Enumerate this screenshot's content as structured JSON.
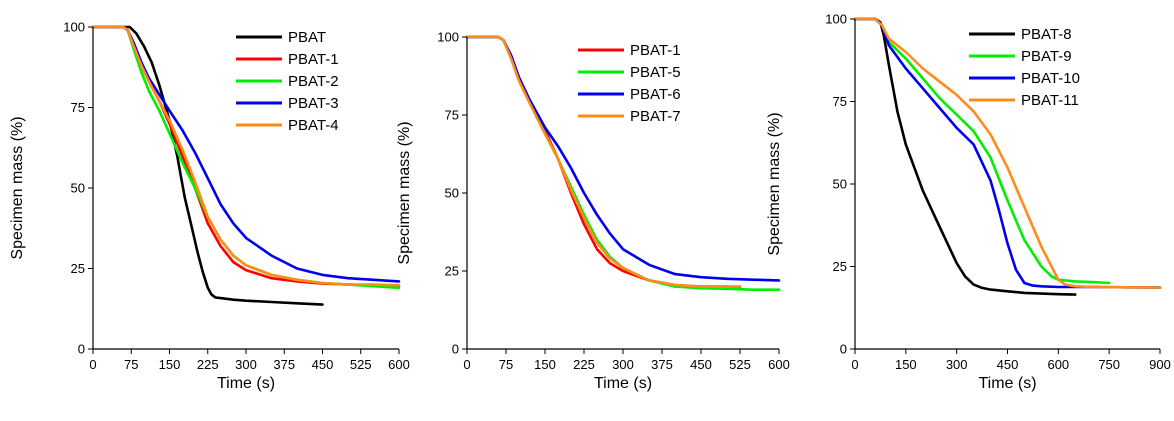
{
  "chart_data": [
    {
      "type": "line",
      "xlabel": "Time (s)",
      "ylabel": "Specimen mass (%)",
      "xlim": [
        0,
        600
      ],
      "ylim": [
        0,
        100
      ],
      "xticks": [
        0,
        75,
        150,
        225,
        300,
        375,
        450,
        525,
        600
      ],
      "yticks": [
        0,
        25,
        50,
        75,
        100
      ],
      "legend_position": "top-right",
      "series": [
        {
          "name": "PBAT",
          "color": "#000000",
          "x": [
            0,
            60,
            72,
            85,
            100,
            115,
            130,
            150,
            165,
            180,
            195,
            205,
            215,
            225,
            232,
            240,
            250,
            275,
            300,
            350,
            400,
            450
          ],
          "y": [
            100,
            100,
            100,
            98,
            94,
            89,
            82,
            71,
            60,
            47,
            37,
            30,
            24,
            19,
            17,
            16,
            15.8,
            15.3,
            15,
            14.6,
            14.2,
            13.8
          ]
        },
        {
          "name": "PBAT-1",
          "color": "#ff0000",
          "x": [
            0,
            60,
            68,
            80,
            95,
            110,
            130,
            150,
            175,
            200,
            225,
            250,
            275,
            300,
            350,
            400,
            450,
            500,
            550,
            600
          ],
          "y": [
            100,
            100,
            99,
            94,
            88,
            83,
            77,
            70,
            60,
            50,
            39,
            32,
            27,
            24.5,
            22,
            21,
            20.3,
            20,
            19.7,
            19.5
          ]
        },
        {
          "name": "PBAT-2",
          "color": "#00ee00",
          "x": [
            0,
            60,
            68,
            80,
            95,
            110,
            130,
            150,
            175,
            200,
            225,
            250,
            275,
            300,
            350,
            400,
            450,
            500,
            550,
            600
          ],
          "y": [
            100,
            100,
            99,
            93,
            86,
            80,
            74,
            67,
            58,
            50,
            41,
            34,
            29,
            26,
            23,
            21.5,
            20.5,
            20,
            19.5,
            19
          ]
        },
        {
          "name": "PBAT-3",
          "color": "#0000ee",
          "x": [
            0,
            60,
            68,
            80,
            95,
            110,
            130,
            150,
            175,
            200,
            225,
            250,
            275,
            300,
            350,
            400,
            450,
            500,
            550,
            600
          ],
          "y": [
            100,
            100,
            99,
            95,
            89,
            84,
            79,
            74,
            68,
            61,
            53,
            45,
            39,
            34.5,
            29,
            25,
            23,
            22,
            21.5,
            21
          ]
        },
        {
          "name": "PBAT-4",
          "color": "#ff8c1a",
          "x": [
            0,
            60,
            68,
            80,
            95,
            110,
            130,
            150,
            175,
            200,
            225,
            250,
            275,
            300,
            350,
            400,
            450,
            500,
            550,
            600
          ],
          "y": [
            100,
            100,
            99,
            94,
            88,
            83,
            77,
            71,
            62,
            52,
            41,
            34,
            29,
            26,
            23,
            21.5,
            20.5,
            20,
            20,
            19.8
          ]
        }
      ],
      "legend_entries": [
        "PBAT",
        "PBAT-1",
        "PBAT-2",
        "PBAT-3",
        "PBAT-4"
      ]
    },
    {
      "type": "line",
      "xlabel": "Time (s)",
      "ylabel": "Specimen mass (%)",
      "xlim": [
        0,
        600
      ],
      "ylim": [
        0,
        100
      ],
      "xticks": [
        0,
        75,
        150,
        225,
        300,
        375,
        450,
        525,
        600
      ],
      "yticks": [
        0,
        25,
        50,
        75,
        100
      ],
      "legend_position": "top-right",
      "series": [
        {
          "name": "PBAT-1",
          "color": "#ff0000",
          "x": [
            0,
            60,
            70,
            85,
            100,
            120,
            150,
            175,
            200,
            225,
            250,
            275,
            300,
            350,
            400,
            450,
            500,
            525
          ],
          "y": [
            100,
            100,
            99,
            94,
            87,
            80,
            70,
            61,
            50,
            40,
            32,
            27.5,
            25,
            22,
            20.5,
            20,
            20,
            19.8
          ]
        },
        {
          "name": "PBAT-5",
          "color": "#00ee00",
          "x": [
            0,
            60,
            70,
            85,
            100,
            120,
            150,
            175,
            200,
            225,
            250,
            275,
            300,
            350,
            400,
            450,
            500,
            550,
            600
          ],
          "y": [
            100,
            100,
            99,
            93,
            86,
            79,
            69,
            61,
            52,
            43,
            35,
            29.5,
            26,
            22,
            20,
            19.5,
            19.3,
            19,
            19
          ]
        },
        {
          "name": "PBAT-6",
          "color": "#0000ee",
          "x": [
            0,
            60,
            70,
            85,
            100,
            120,
            150,
            175,
            200,
            225,
            250,
            275,
            300,
            350,
            400,
            450,
            500,
            550,
            600
          ],
          "y": [
            100,
            100,
            99,
            94,
            87,
            80,
            71,
            65,
            58,
            50,
            43,
            37,
            32,
            27,
            24,
            23,
            22.5,
            22.2,
            22
          ]
        },
        {
          "name": "PBAT-7",
          "color": "#ff8c1a",
          "x": [
            0,
            60,
            70,
            85,
            100,
            120,
            150,
            175,
            200,
            225,
            250,
            275,
            300,
            350,
            400,
            450,
            500,
            525
          ],
          "y": [
            100,
            100,
            99,
            93,
            86,
            79,
            69,
            61,
            51,
            42,
            34,
            29,
            26,
            22,
            20.5,
            20,
            20,
            20
          ]
        }
      ],
      "legend_entries": [
        "PBAT-1",
        "PBAT-5",
        "PBAT-6",
        "PBAT-7"
      ]
    },
    {
      "type": "line",
      "xlabel": "Time (s)",
      "ylabel": "Specimen mass (%)",
      "xlim": [
        0,
        900
      ],
      "ylim": [
        0,
        100
      ],
      "xticks": [
        0,
        150,
        300,
        450,
        600,
        750,
        900
      ],
      "yticks": [
        0,
        25,
        50,
        75,
        100
      ],
      "legend_position": "top-right",
      "series": [
        {
          "name": "PBAT-8",
          "color": "#000000",
          "x": [
            0,
            60,
            75,
            85,
            100,
            125,
            150,
            200,
            250,
            300,
            325,
            350,
            375,
            400,
            450,
            500,
            550,
            600,
            650
          ],
          "y": [
            100,
            100,
            99,
            95,
            86,
            72,
            62,
            48,
            37,
            26,
            22,
            19.5,
            18.5,
            18,
            17.5,
            17,
            16.8,
            16.6,
            16.5
          ]
        },
        {
          "name": "PBAT-9",
          "color": "#00ee00",
          "x": [
            0,
            60,
            80,
            100,
            150,
            200,
            250,
            300,
            350,
            400,
            450,
            500,
            550,
            580,
            600,
            650,
            700,
            750
          ],
          "y": [
            100,
            100,
            98,
            93,
            88,
            82,
            76,
            71,
            66,
            58,
            45,
            33,
            25,
            22,
            21,
            20.5,
            20.3,
            20
          ]
        },
        {
          "name": "PBAT-10",
          "color": "#0000ee",
          "x": [
            0,
            60,
            80,
            100,
            150,
            200,
            250,
            300,
            350,
            400,
            425,
            450,
            475,
            500,
            525,
            550,
            600,
            700,
            800,
            900
          ],
          "y": [
            100,
            100,
            98,
            92,
            85,
            79,
            73,
            67,
            62,
            51,
            42,
            32,
            24,
            20,
            19.2,
            19,
            18.8,
            18.8,
            18.7,
            18.6
          ]
        },
        {
          "name": "PBAT-11",
          "color": "#ff8c1a",
          "x": [
            0,
            60,
            80,
            100,
            150,
            200,
            250,
            300,
            350,
            400,
            450,
            500,
            550,
            600,
            620,
            650,
            700,
            800,
            900
          ],
          "y": [
            100,
            100,
            98,
            94,
            90,
            85,
            81,
            77,
            72,
            65,
            55,
            43,
            31,
            21,
            19.5,
            19,
            18.8,
            18.7,
            18.6
          ]
        }
      ],
      "legend_entries": [
        "PBAT-8",
        "PBAT-9",
        "PBAT-10",
        "PBAT-11"
      ]
    }
  ]
}
